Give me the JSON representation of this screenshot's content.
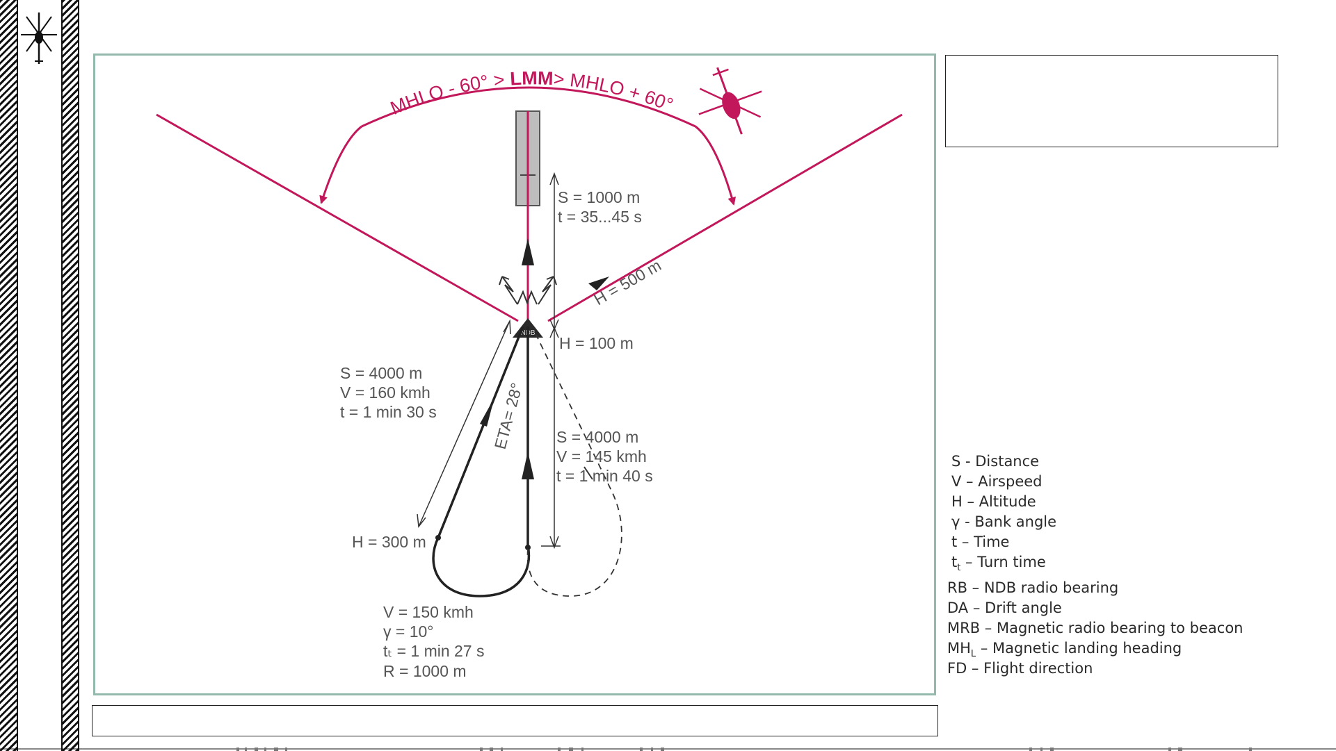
{
  "diagram": {
    "arc_label": {
      "left": "MHLO - 60° > ",
      "center": "LMM",
      "right": "> MHLO + 60°"
    },
    "beacon_label": "NDB",
    "altitude_500": "H = 500 m",
    "altitude_100": "H = 100 m",
    "altitude_300": "H = 300 m",
    "segment_runway": [
      "S = 1000 m",
      "t = 35...45 s"
    ],
    "segment_outbound": [
      "S = 4000 m",
      "V = 160 kmh",
      "t = 1 min 30 s"
    ],
    "segment_inbound": [
      "S = 4000 m",
      "V = 145 kmh",
      "t = 1 min 40 s"
    ],
    "eta_label": "ETA= 28°",
    "turn_params": {
      "speed": "V = 150 kmh",
      "bank": "γ = 10°",
      "turn_time": "tₜ = 1 min 27 s",
      "radius": "R = 1000 m"
    }
  },
  "legend": {
    "group1": [
      "S - Distance",
      "V – Airspeed",
      "H – Altitude",
      "γ - Bank angle",
      "t – Time"
    ],
    "turn_time": {
      "symbol": "t",
      "sub": "t",
      "text": " – Turn time"
    },
    "group2": [
      "RB – NDB radio bearing",
      "DA – Drift angle",
      "MRB – Magnetic radio bearing to beacon"
    ],
    "landing_heading": {
      "symbol": "MH",
      "sub": "L",
      "text": " – Magnetic landing heading"
    },
    "flight_direction": "FD – Flight direction"
  },
  "colors": {
    "accent": "#c2185b",
    "frame": "#93b9ac",
    "track": "#222222",
    "label": "#555555"
  },
  "icons": [
    "helicopter-logo-icon",
    "helicopter-icon"
  ]
}
